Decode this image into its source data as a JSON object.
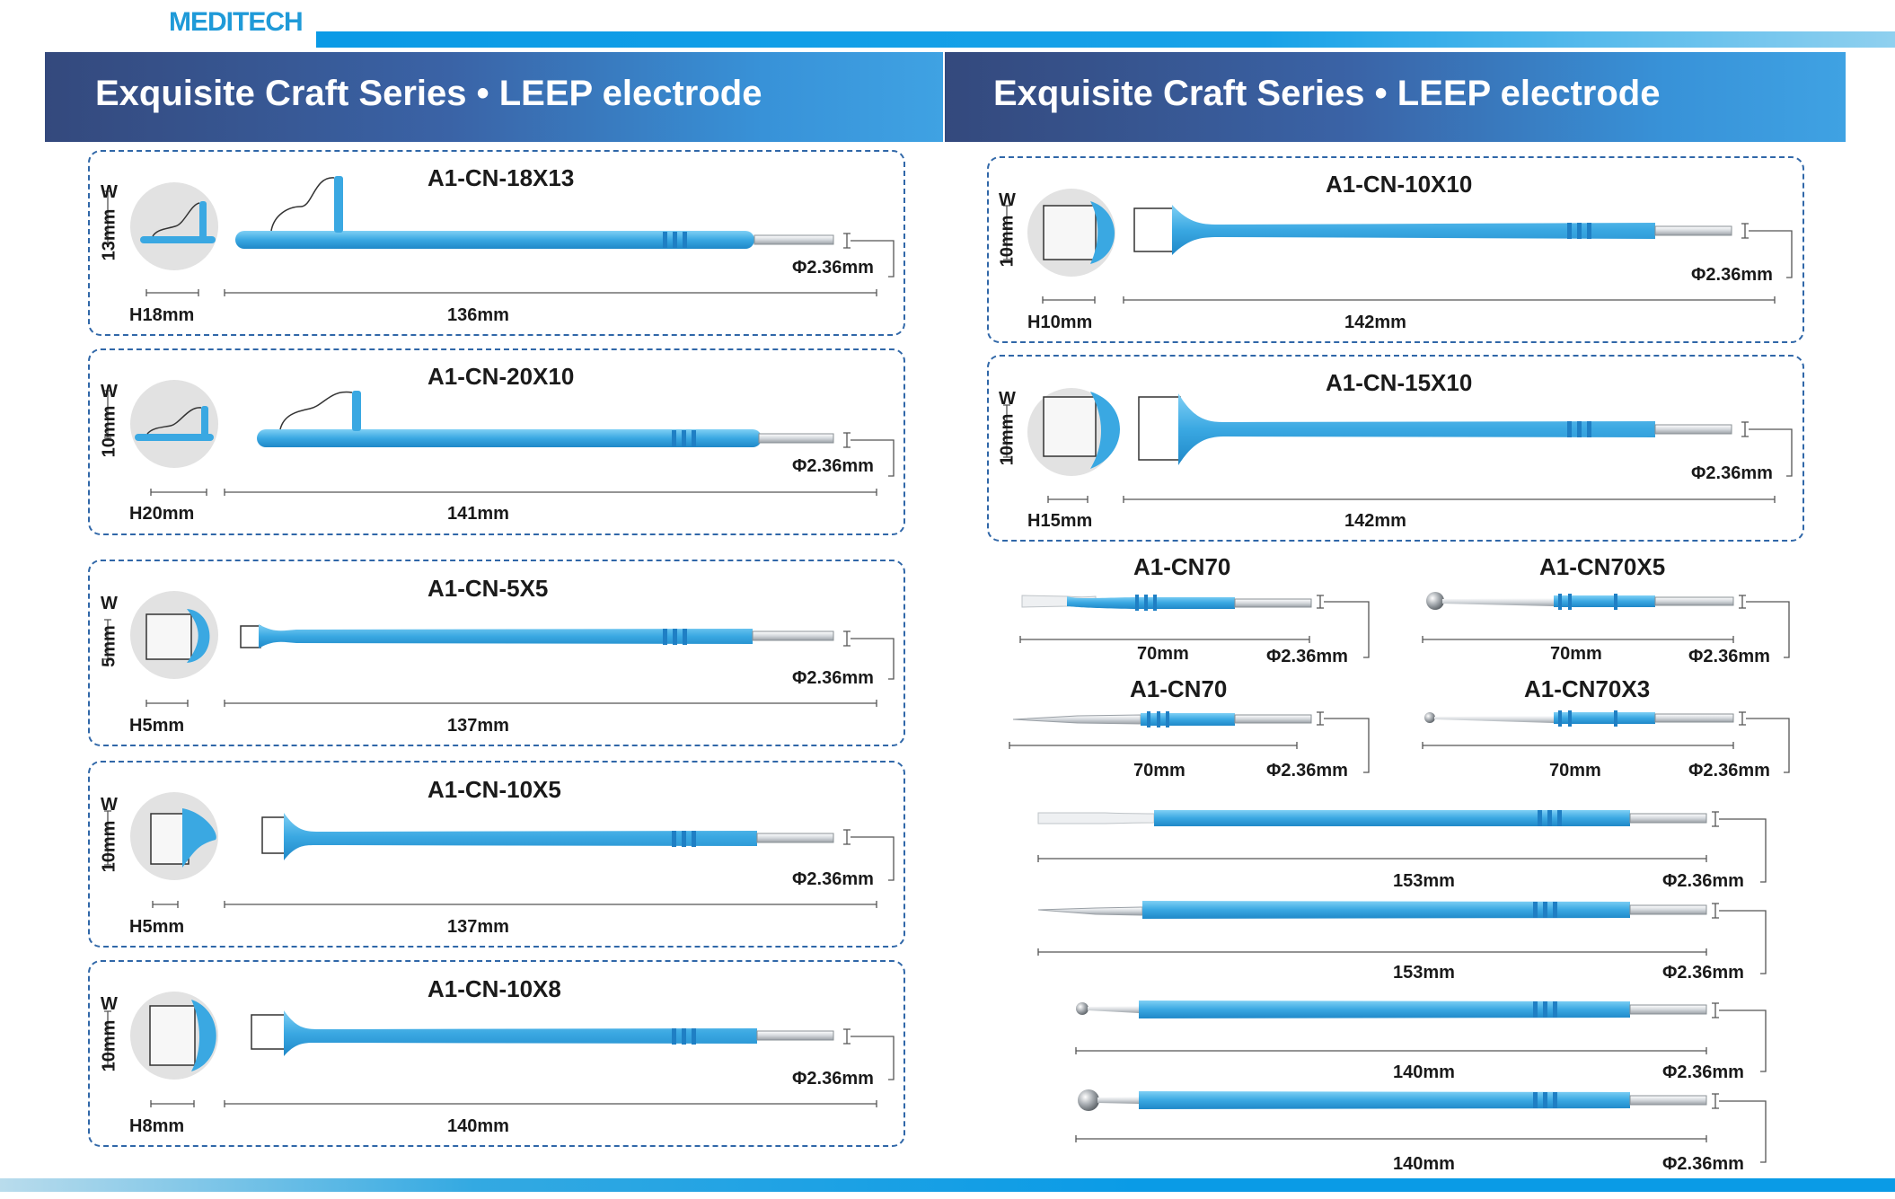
{
  "brand": {
    "logo_text": "MEDITECH"
  },
  "left_panel": {
    "title": "Exquisite Craft Series • LEEP electrode",
    "cards": [
      {
        "model": "A1-CN-18X13",
        "w_label": "W",
        "height_label": "13mm",
        "tip_label": "H18mm",
        "length_label": "136mm",
        "diameter_label": "Φ2.36mm"
      },
      {
        "model": "A1-CN-20X10",
        "w_label": "W",
        "height_label": "10mm",
        "tip_label": "H20mm",
        "length_label": "141mm",
        "diameter_label": "Φ2.36mm"
      },
      {
        "model": "A1-CN-5X5",
        "w_label": "W",
        "height_label": "5mm",
        "tip_label": "H5mm",
        "length_label": "137mm",
        "diameter_label": "Φ2.36mm"
      },
      {
        "model": "A1-CN-10X5",
        "w_label": "W",
        "height_label": "10mm",
        "tip_label": "H5mm",
        "length_label": "137mm",
        "diameter_label": "Φ2.36mm"
      },
      {
        "model": "A1-CN-10X8",
        "w_label": "W",
        "height_label": "10mm",
        "tip_label": "H8mm",
        "length_label": "140mm",
        "diameter_label": "Φ2.36mm"
      }
    ]
  },
  "right_panel": {
    "title": "Exquisite Craft Series • LEEP electrode",
    "cards": [
      {
        "model": "A1-CN-10X10",
        "w_label": "W",
        "height_label": "10mm",
        "tip_label": "H10mm",
        "length_label": "142mm",
        "diameter_label": "Φ2.36mm"
      },
      {
        "model": "A1-CN-15X10",
        "w_label": "W",
        "height_label": "10mm",
        "tip_label": "H15mm",
        "length_label": "142mm",
        "diameter_label": "Φ2.36mm"
      }
    ],
    "small_electrodes": [
      {
        "model": "A1-CN70",
        "length_label": "70mm",
        "diameter_label": "Φ2.36mm"
      },
      {
        "model": "A1-CN70X5",
        "length_label": "70mm",
        "diameter_label": "Φ2.36mm"
      },
      {
        "model": "A1-CN70",
        "length_label": "70mm",
        "diameter_label": "Φ2.36mm"
      },
      {
        "model": "A1-CN70X3",
        "length_label": "70mm",
        "diameter_label": "Φ2.36mm"
      }
    ],
    "long_electrodes": [
      {
        "length_label": "153mm",
        "diameter_label": "Φ2.36mm"
      },
      {
        "length_label": "153mm",
        "diameter_label": "Φ2.36mm"
      },
      {
        "length_label": "140mm",
        "diameter_label": "Φ2.36mm"
      },
      {
        "length_label": "140mm",
        "diameter_label": "Φ2.36mm"
      }
    ]
  },
  "colors": {
    "accent_blue": "#3aa8e2",
    "dark_blue": "#1f7fc4",
    "banner_dark": "#34497d",
    "banner_light": "#3fa2e3",
    "card_border": "#3067a8"
  }
}
